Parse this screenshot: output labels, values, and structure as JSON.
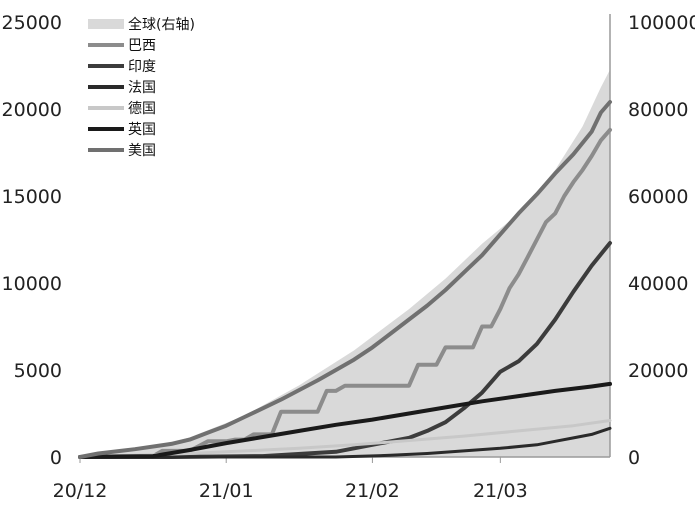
{
  "chart_data": {
    "type": "line",
    "title": "",
    "xlabel": "",
    "ylabel": "",
    "x_ticks": [
      "20/12",
      "21/01",
      "21/02",
      "21/03"
    ],
    "x_tick_positions": [
      0,
      16,
      32,
      46
    ],
    "x_range": [
      0,
      58
    ],
    "ylim_left": [
      0,
      25000
    ],
    "ylim_right": [
      0,
      100000
    ],
    "y_ticks_left": [
      "0",
      "5000",
      "10000",
      "15000",
      "20000",
      "25000"
    ],
    "y_ticks_right": [
      "0",
      "20000",
      "40000",
      "60000",
      "80000",
      "100000"
    ],
    "legend_position": "top-left",
    "grid": false,
    "area_series": {
      "name": "全球(右轴)",
      "axis": "right",
      "color": "#d9d9d9",
      "x": [
        0,
        6,
        12,
        18,
        24,
        30,
        36,
        40,
        44,
        48,
        52,
        55,
        57,
        58
      ],
      "values": [
        0,
        1500,
        4500,
        9500,
        16500,
        24500,
        34000,
        41000,
        49000,
        56000,
        66000,
        76000,
        85000,
        89000
      ]
    },
    "series": [
      {
        "name": "巴西",
        "axis": "left",
        "color": "#8c8c8c",
        "width": 4,
        "x": [
          0,
          5,
          8,
          9,
          12,
          14,
          16,
          17,
          18,
          19,
          21,
          22,
          23,
          26,
          27,
          28,
          29,
          30,
          36,
          37,
          38,
          39,
          40,
          41,
          42,
          43,
          44,
          45,
          46,
          47,
          48,
          49,
          50,
          51,
          52,
          53,
          54,
          55,
          56,
          57,
          58
        ],
        "values": [
          0,
          50,
          50,
          350,
          350,
          900,
          900,
          1000,
          1000,
          1300,
          1300,
          2600,
          2600,
          2600,
          3800,
          3800,
          4100,
          4100,
          4100,
          5300,
          5300,
          5300,
          6300,
          6300,
          6300,
          6300,
          7500,
          7500,
          8500,
          9700,
          10500,
          11500,
          12500,
          13500,
          14000,
          15000,
          15800,
          16500,
          17300,
          18200,
          18800
        ]
      },
      {
        "name": "印度",
        "axis": "left",
        "color": "#3c3c3c",
        "width": 4,
        "x": [
          0,
          10,
          20,
          28,
          32,
          36,
          38,
          40,
          42,
          44,
          46,
          48,
          50,
          52,
          54,
          56,
          58
        ],
        "values": [
          0,
          0,
          50,
          300,
          700,
          1100,
          1500,
          2000,
          2800,
          3700,
          4900,
          5500,
          6500,
          7900,
          9500,
          11000,
          12300
        ]
      },
      {
        "name": "法国",
        "axis": "left",
        "color": "#2a2a2a",
        "width": 3,
        "x": [
          0,
          10,
          20,
          28,
          34,
          38,
          42,
          46,
          50,
          52,
          54,
          56,
          58
        ],
        "values": [
          0,
          0,
          0,
          0,
          100,
          200,
          350,
          500,
          700,
          900,
          1100,
          1300,
          1650
        ]
      },
      {
        "name": "德国",
        "axis": "left",
        "color": "#c8c8c8",
        "width": 3,
        "x": [
          0,
          6,
          12,
          18,
          24,
          30,
          36,
          42,
          48,
          54,
          58
        ],
        "values": [
          0,
          100,
          200,
          350,
          500,
          700,
          950,
          1200,
          1500,
          1800,
          2100
        ]
      },
      {
        "name": "英国",
        "axis": "left",
        "color": "#1a1a1a",
        "width": 4,
        "x": [
          0,
          8,
          12,
          16,
          20,
          24,
          28,
          32,
          36,
          40,
          44,
          48,
          52,
          56,
          58
        ],
        "values": [
          0,
          50,
          400,
          800,
          1150,
          1500,
          1850,
          2150,
          2500,
          2850,
          3200,
          3500,
          3800,
          4050,
          4200
        ]
      },
      {
        "name": "美国",
        "axis": "left",
        "color": "#707070",
        "width": 4,
        "x": [
          0,
          2,
          6,
          10,
          12,
          14,
          16,
          18,
          20,
          22,
          24,
          26,
          28,
          30,
          32,
          34,
          36,
          38,
          40,
          42,
          44,
          46,
          48,
          50,
          52,
          54,
          56,
          57,
          58
        ],
        "values": [
          0,
          200,
          450,
          750,
          1000,
          1400,
          1800,
          2300,
          2800,
          3300,
          3850,
          4400,
          5000,
          5600,
          6300,
          7100,
          7900,
          8700,
          9600,
          10600,
          11600,
          12800,
          14000,
          15100,
          16300,
          17400,
          18700,
          19800,
          20400
        ]
      }
    ]
  }
}
